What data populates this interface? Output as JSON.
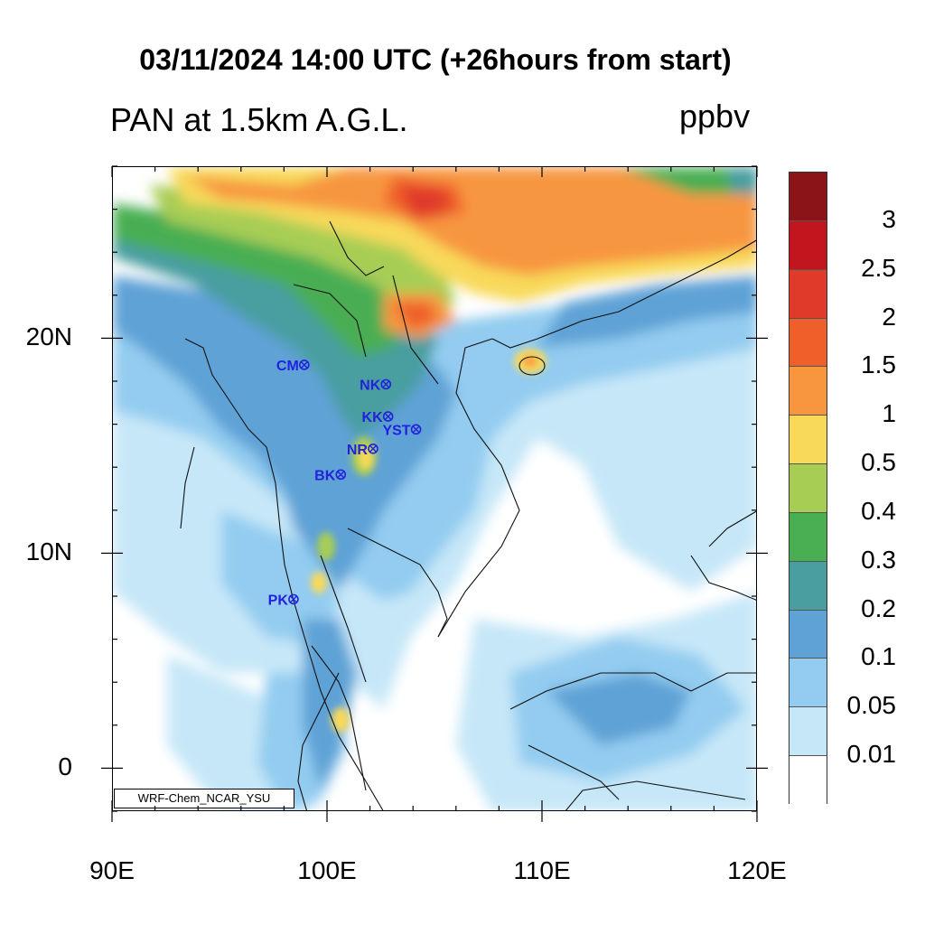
{
  "header": {
    "title": "03/11/2024 14:00 UTC (+26hours from start)",
    "variable": "PAN at 1.5km A.G.L.",
    "units": "ppbv"
  },
  "map": {
    "lon_range": [
      90,
      120
    ],
    "lat_range": [
      -2,
      28
    ],
    "lon_ticks": [
      {
        "value": 90,
        "label": "90E"
      },
      {
        "value": 100,
        "label": "100E"
      },
      {
        "value": 110,
        "label": "110E"
      },
      {
        "value": 120,
        "label": "120E"
      }
    ],
    "lat_ticks": [
      {
        "value": 20,
        "label": "20N"
      },
      {
        "value": 10,
        "label": "10N"
      },
      {
        "value": 0,
        "label": "0"
      }
    ],
    "credit": "WRF-Chem_NCAR_YSU",
    "stations": [
      {
        "id": "CM",
        "lon": 98.9,
        "lat": 18.8
      },
      {
        "id": "NK",
        "lon": 102.7,
        "lat": 17.9
      },
      {
        "id": "KK",
        "lon": 102.8,
        "lat": 16.4
      },
      {
        "id": "YST",
        "lon": 104.1,
        "lat": 15.8
      },
      {
        "id": "NR",
        "lon": 102.1,
        "lat": 14.9
      },
      {
        "id": "BK",
        "lon": 100.6,
        "lat": 13.7
      },
      {
        "id": "PK",
        "lon": 98.4,
        "lat": 7.9
      }
    ]
  },
  "colorbar": {
    "labels": [
      "3",
      "2.5",
      "2",
      "1.5",
      "1",
      "0.5",
      "0.4",
      "0.3",
      "0.2",
      "0.1",
      "0.05",
      "0.01"
    ],
    "colors": [
      "#8b1419",
      "#c2161e",
      "#e03a2b",
      "#ef5f2a",
      "#f7963f",
      "#f8d95a",
      "#a7cd55",
      "#4aae53",
      "#4a9ea0",
      "#5fa2d6",
      "#93ccf0",
      "#c6e7f8",
      "#ffffff"
    ]
  }
}
